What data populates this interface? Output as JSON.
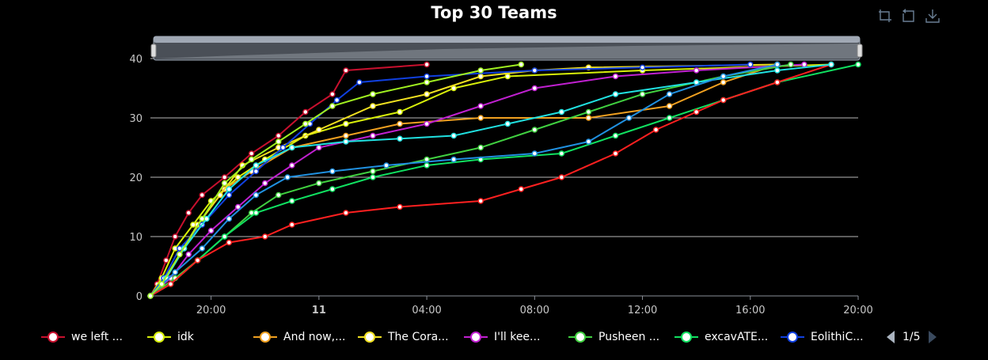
{
  "title": "Top 30 Teams",
  "toolbar": {
    "icons": [
      "zoom-icon",
      "restore-icon",
      "download-icon"
    ]
  },
  "legend": {
    "page_label": "1/5",
    "items": [
      {
        "label": "we left ...",
        "color": "#c8102e"
      },
      {
        "label": "idk",
        "color": "#d8f00a"
      },
      {
        "label": "And now,...",
        "color": "#f0a020"
      },
      {
        "label": "The Cora...",
        "color": "#f0e020"
      },
      {
        "label": "I'll kee...",
        "color": "#c020d0"
      },
      {
        "label": "Pusheen ...",
        "color": "#40d040"
      },
      {
        "label": "excavATE...",
        "color": "#10e060"
      },
      {
        "label": "EolithiC...",
        "color": "#1040e0"
      }
    ]
  },
  "chart_data": {
    "type": "line",
    "title": "Top 30 Teams",
    "xlabel": "",
    "ylabel": "",
    "ylim": [
      0,
      40
    ],
    "yticks": [
      0,
      10,
      20,
      30,
      40
    ],
    "xlim": [
      "2023-11-10T17:45",
      "2023-11-11T20:00"
    ],
    "xticks": [
      {
        "t": "2023-11-10T20:00",
        "label": "20:00",
        "bold": false
      },
      {
        "t": "2023-11-11T00:00",
        "label": "11",
        "bold": true
      },
      {
        "t": "2023-11-11T04:00",
        "label": "04:00",
        "bold": false
      },
      {
        "t": "2023-11-11T08:00",
        "label": "08:00",
        "bold": false
      },
      {
        "t": "2023-11-11T12:00",
        "label": "12:00",
        "bold": false
      },
      {
        "t": "2023-11-11T16:00",
        "label": "16:00",
        "bold": false
      },
      {
        "t": "2023-11-11T20:00",
        "label": "20:00",
        "bold": false
      }
    ],
    "grid": true,
    "legend_position": "bottom",
    "series": [
      {
        "name": "we left ...",
        "color": "#c8102e",
        "points": [
          [
            "2023-11-10T17:45",
            0
          ],
          [
            "2023-11-10T18:00",
            2
          ],
          [
            "2023-11-10T18:20",
            6
          ],
          [
            "2023-11-10T18:40",
            10
          ],
          [
            "2023-11-10T19:10",
            14
          ],
          [
            "2023-11-10T19:40",
            17
          ],
          [
            "2023-11-10T20:30",
            20
          ],
          [
            "2023-11-10T21:30",
            24
          ],
          [
            "2023-11-10T22:30",
            27
          ],
          [
            "2023-11-10T23:30",
            31
          ],
          [
            "2023-11-11T00:30",
            34
          ],
          [
            "2023-11-11T01:00",
            38
          ],
          [
            "2023-11-11T04:00",
            39
          ]
        ]
      },
      {
        "name": "idk",
        "color": "#d8f00a",
        "points": [
          [
            "2023-11-10T17:45",
            0
          ],
          [
            "2023-11-10T18:10",
            3
          ],
          [
            "2023-11-10T18:40",
            8
          ],
          [
            "2023-11-10T19:20",
            12
          ],
          [
            "2023-11-10T20:00",
            16
          ],
          [
            "2023-11-10T21:00",
            20
          ],
          [
            "2023-11-10T22:00",
            23
          ],
          [
            "2023-11-10T23:30",
            27
          ],
          [
            "2023-11-11T01:00",
            29
          ],
          [
            "2023-11-11T03:00",
            31
          ],
          [
            "2023-11-11T05:00",
            35
          ],
          [
            "2023-11-11T07:00",
            37
          ],
          [
            "2023-11-11T12:00",
            38
          ],
          [
            "2023-11-11T19:00",
            39
          ]
        ]
      },
      {
        "name": "And now,...",
        "color": "#f0a020",
        "points": [
          [
            "2023-11-10T17:45",
            0
          ],
          [
            "2023-11-10T18:20",
            3
          ],
          [
            "2023-11-10T19:00",
            8
          ],
          [
            "2023-11-10T19:40",
            13
          ],
          [
            "2023-11-10T20:30",
            18
          ],
          [
            "2023-11-10T21:30",
            21
          ],
          [
            "2023-11-10T23:00",
            25
          ],
          [
            "2023-11-11T01:00",
            27
          ],
          [
            "2023-11-11T03:00",
            29
          ],
          [
            "2023-11-11T06:00",
            30
          ],
          [
            "2023-11-11T10:00",
            30
          ],
          [
            "2023-11-11T13:00",
            32
          ],
          [
            "2023-11-11T15:00",
            36
          ],
          [
            "2023-11-11T17:00",
            39
          ]
        ]
      },
      {
        "name": "The Cora...",
        "color": "#f0e020",
        "points": [
          [
            "2023-11-10T17:45",
            0
          ],
          [
            "2023-11-10T18:10",
            2
          ],
          [
            "2023-11-10T18:50",
            7
          ],
          [
            "2023-11-10T19:30",
            12
          ],
          [
            "2023-11-10T20:20",
            17
          ],
          [
            "2023-11-10T21:10",
            22
          ],
          [
            "2023-11-10T22:30",
            25
          ],
          [
            "2023-11-11T00:00",
            28
          ],
          [
            "2023-11-11T02:00",
            32
          ],
          [
            "2023-11-11T04:00",
            34
          ],
          [
            "2023-11-11T06:00",
            37
          ],
          [
            "2023-11-11T08:00",
            38
          ],
          [
            "2023-11-11T10:00",
            38.5
          ],
          [
            "2023-11-11T17:00",
            39
          ]
        ]
      },
      {
        "name": "I'll kee...",
        "color": "#c020d0",
        "points": [
          [
            "2023-11-10T17:45",
            0
          ],
          [
            "2023-11-10T18:30",
            3
          ],
          [
            "2023-11-10T19:10",
            7
          ],
          [
            "2023-11-10T20:00",
            11
          ],
          [
            "2023-11-10T21:00",
            15
          ],
          [
            "2023-11-10T22:00",
            19
          ],
          [
            "2023-11-10T23:00",
            22
          ],
          [
            "2023-11-11T00:00",
            25
          ],
          [
            "2023-11-11T02:00",
            27
          ],
          [
            "2023-11-11T04:00",
            29
          ],
          [
            "2023-11-11T06:00",
            32
          ],
          [
            "2023-11-11T08:00",
            35
          ],
          [
            "2023-11-11T11:00",
            37
          ],
          [
            "2023-11-11T14:00",
            38
          ],
          [
            "2023-11-11T18:00",
            39
          ]
        ]
      },
      {
        "name": "Pusheen ...",
        "color": "#40d040",
        "points": [
          [
            "2023-11-10T17:45",
            0
          ],
          [
            "2023-11-10T18:40",
            3
          ],
          [
            "2023-11-10T19:30",
            6
          ],
          [
            "2023-11-10T20:30",
            10
          ],
          [
            "2023-11-10T21:30",
            14
          ],
          [
            "2023-11-10T22:30",
            17
          ],
          [
            "2023-11-11T00:00",
            19
          ],
          [
            "2023-11-11T02:00",
            21
          ],
          [
            "2023-11-11T04:00",
            23
          ],
          [
            "2023-11-11T06:00",
            25
          ],
          [
            "2023-11-11T08:00",
            28
          ],
          [
            "2023-11-11T10:00",
            31
          ],
          [
            "2023-11-11T12:00",
            34
          ],
          [
            "2023-11-11T15:00",
            37
          ],
          [
            "2023-11-11T17:30",
            39
          ]
        ]
      },
      {
        "name": "excavATE...",
        "color": "#10e060",
        "points": [
          [
            "2023-11-10T17:45",
            0
          ],
          [
            "2023-11-10T18:30",
            2
          ],
          [
            "2023-11-10T19:30",
            6
          ],
          [
            "2023-11-10T20:30",
            10
          ],
          [
            "2023-11-10T21:40",
            14
          ],
          [
            "2023-11-10T23:00",
            16
          ],
          [
            "2023-11-11T00:30",
            18
          ],
          [
            "2023-11-11T02:00",
            20
          ],
          [
            "2023-11-11T04:00",
            22
          ],
          [
            "2023-11-11T06:00",
            23
          ],
          [
            "2023-11-11T09:00",
            24
          ],
          [
            "2023-11-11T11:00",
            27
          ],
          [
            "2023-11-11T13:00",
            30
          ],
          [
            "2023-11-11T15:00",
            33
          ],
          [
            "2023-11-11T17:00",
            36
          ],
          [
            "2023-11-11T20:00",
            39
          ]
        ]
      },
      {
        "name": "EolithiC...",
        "color": "#1040e0",
        "points": [
          [
            "2023-11-10T17:45",
            0
          ],
          [
            "2023-11-10T18:15",
            3
          ],
          [
            "2023-11-10T18:50",
            8
          ],
          [
            "2023-11-10T19:40",
            12
          ],
          [
            "2023-11-10T20:40",
            17
          ],
          [
            "2023-11-10T21:40",
            21
          ],
          [
            "2023-11-10T22:40",
            25
          ],
          [
            "2023-11-10T23:40",
            29
          ],
          [
            "2023-11-11T00:40",
            33
          ],
          [
            "2023-11-11T01:30",
            36
          ],
          [
            "2023-11-11T04:00",
            37
          ],
          [
            "2023-11-11T08:00",
            38
          ],
          [
            "2023-11-11T12:00",
            38.5
          ],
          [
            "2023-11-11T16:00",
            39
          ]
        ]
      },
      {
        "name": "",
        "color": "#ff2020",
        "points": [
          [
            "2023-11-10T17:45",
            0
          ],
          [
            "2023-11-10T18:30",
            2
          ],
          [
            "2023-11-10T19:30",
            6
          ],
          [
            "2023-11-10T20:40",
            9
          ],
          [
            "2023-11-10T22:00",
            10
          ],
          [
            "2023-11-10T23:00",
            12
          ],
          [
            "2023-11-11T01:00",
            14
          ],
          [
            "2023-11-11T03:00",
            15
          ],
          [
            "2023-11-11T06:00",
            16
          ],
          [
            "2023-11-11T07:30",
            18
          ],
          [
            "2023-11-11T09:00",
            20
          ],
          [
            "2023-11-11T11:00",
            24
          ],
          [
            "2023-11-11T12:30",
            28
          ],
          [
            "2023-11-11T14:00",
            31
          ],
          [
            "2023-11-11T15:00",
            33
          ],
          [
            "2023-11-11T17:00",
            36
          ],
          [
            "2023-11-11T19:00",
            39
          ]
        ]
      },
      {
        "name": "",
        "color": "#20e0e0",
        "points": [
          [
            "2023-11-10T17:45",
            0
          ],
          [
            "2023-11-10T18:20",
            3
          ],
          [
            "2023-11-10T19:00",
            8
          ],
          [
            "2023-11-10T19:50",
            13
          ],
          [
            "2023-11-10T20:40",
            18
          ],
          [
            "2023-11-10T21:40",
            22
          ],
          [
            "2023-11-10T23:00",
            25
          ],
          [
            "2023-11-11T01:00",
            26
          ],
          [
            "2023-11-11T03:00",
            26.5
          ],
          [
            "2023-11-11T05:00",
            27
          ],
          [
            "2023-11-11T07:00",
            29
          ],
          [
            "2023-11-11T09:00",
            31
          ],
          [
            "2023-11-11T11:00",
            34
          ],
          [
            "2023-11-11T14:00",
            36
          ],
          [
            "2023-11-11T17:00",
            38
          ],
          [
            "2023-11-11T19:00",
            39
          ]
        ]
      },
      {
        "name": "",
        "color": "#2090e0",
        "points": [
          [
            "2023-11-10T17:45",
            0
          ],
          [
            "2023-11-10T18:40",
            4
          ],
          [
            "2023-11-10T19:40",
            8
          ],
          [
            "2023-11-10T20:40",
            13
          ],
          [
            "2023-11-10T21:40",
            17
          ],
          [
            "2023-11-10T22:50",
            20
          ],
          [
            "2023-11-11T00:30",
            21
          ],
          [
            "2023-11-11T02:30",
            22
          ],
          [
            "2023-11-11T05:00",
            23
          ],
          [
            "2023-11-11T08:00",
            24
          ],
          [
            "2023-11-11T10:00",
            26
          ],
          [
            "2023-11-11T11:30",
            30
          ],
          [
            "2023-11-11T13:00",
            34
          ],
          [
            "2023-11-11T15:00",
            37
          ],
          [
            "2023-11-11T17:00",
            39
          ]
        ]
      },
      {
        "name": "",
        "color": "#a0f020",
        "points": [
          [
            "2023-11-10T17:45",
            0
          ],
          [
            "2023-11-10T18:10",
            2
          ],
          [
            "2023-11-10T18:50",
            7
          ],
          [
            "2023-11-10T19:40",
            13
          ],
          [
            "2023-11-10T20:30",
            19
          ],
          [
            "2023-11-10T21:30",
            23
          ],
          [
            "2023-11-10T22:30",
            26
          ],
          [
            "2023-11-10T23:30",
            29
          ],
          [
            "2023-11-11T00:30",
            32
          ],
          [
            "2023-11-11T02:00",
            34
          ],
          [
            "2023-11-11T04:00",
            36
          ],
          [
            "2023-11-11T06:00",
            38
          ],
          [
            "2023-11-11T07:30",
            39
          ]
        ]
      }
    ]
  }
}
